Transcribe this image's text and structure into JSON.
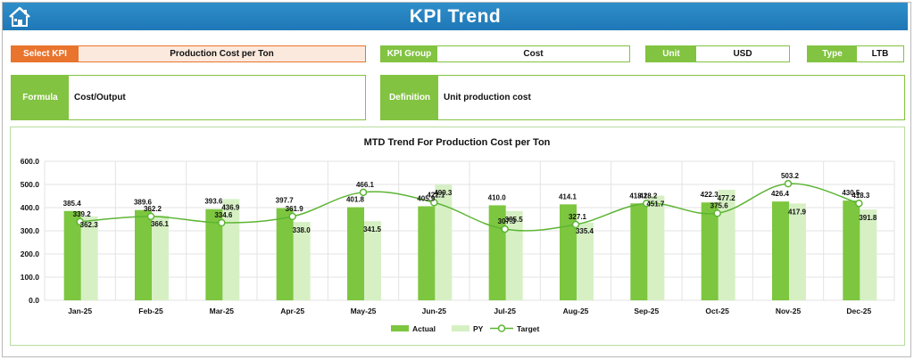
{
  "header": {
    "title": "KPI Trend",
    "home_icon": "home-icon"
  },
  "select_kpi": {
    "label": "Select KPI",
    "value": "Production Cost per Ton"
  },
  "kpi_group": {
    "label": "KPI Group",
    "value": "Cost"
  },
  "unit": {
    "label": "Unit",
    "value": "USD"
  },
  "type": {
    "label": "Type",
    "value": "LTB"
  },
  "formula": {
    "label": "Formula",
    "value": "Cost/Output"
  },
  "definition": {
    "label": "Definition",
    "value": "Unit production cost"
  },
  "colors": {
    "header": "#1f77b6",
    "accent_green": "#82c341",
    "actual": "#7dc63f",
    "py": "#d6f0c4",
    "target": "#5db534",
    "select_label": "#e8742e"
  },
  "chart_data": {
    "type": "bar",
    "title": "MTD Trend For Production Cost per Ton",
    "categories": [
      "Jan-25",
      "Feb-25",
      "Mar-25",
      "Apr-25",
      "May-25",
      "Jun-25",
      "Jul-25",
      "Aug-25",
      "Sep-25",
      "Oct-25",
      "Nov-25",
      "Dec-25"
    ],
    "series": [
      {
        "name": "Actual",
        "kind": "bar",
        "values": [
          385.4,
          389.6,
          393.6,
          397.7,
          401.8,
          405.9,
          410.0,
          414.1,
          418.2,
          422.3,
          426.4,
          430.5
        ]
      },
      {
        "name": "PY",
        "kind": "bar",
        "values": [
          362.3,
          366.1,
          436.9,
          338.0,
          341.5,
          499.3,
          385.5,
          335.4,
          451.7,
          477.2,
          417.9,
          391.8
        ]
      },
      {
        "name": "Target",
        "kind": "line",
        "values": [
          339.2,
          362.2,
          334.6,
          361.9,
          466.1,
          422.1,
          307.3,
          327.1,
          418.2,
          375.6,
          503.2,
          418.3
        ]
      }
    ],
    "ylim": [
      0,
      600
    ],
    "yticks": [
      "0.0",
      "100.0",
      "200.0",
      "300.0",
      "400.0",
      "500.0",
      "600.0"
    ],
    "grid": true,
    "legend": "bottom"
  }
}
